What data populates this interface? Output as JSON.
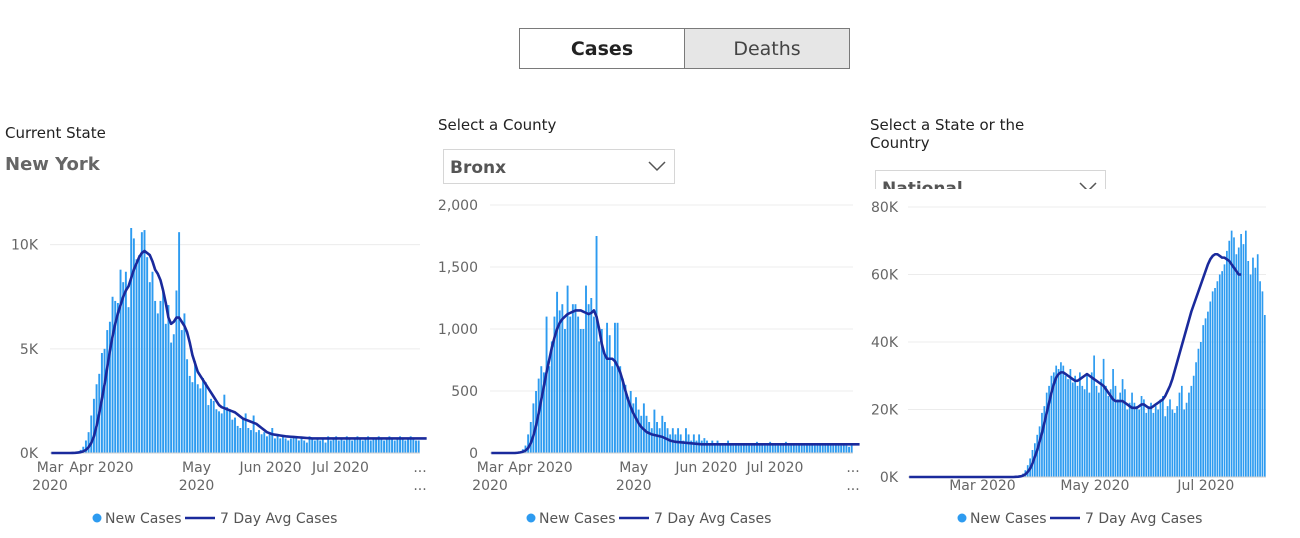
{
  "toggle": {
    "cases_label": "Cases",
    "deaths_label": "Deaths",
    "selected": "Cases"
  },
  "panels": {
    "state": {
      "title": "Current State",
      "value": "New York"
    },
    "county": {
      "title": "Select a County",
      "value": "Bronx"
    },
    "country": {
      "title_line1": "Select a State or the",
      "title_line2": "Country",
      "value": "National"
    }
  },
  "colors": {
    "bars": "#2d9bf0",
    "avg_line": "#1a2a9c",
    "grid": "#ececec",
    "axis_text": "#666666"
  },
  "chart_data": [
    {
      "type": "bar",
      "panel": "Current State",
      "x_ticks": [
        "Mar 2020",
        "Apr 2020",
        "May 2020",
        "Jun 2020",
        "Jul 2020",
        "..."
      ],
      "y_ticks": [
        "0K",
        "5K",
        "10K"
      ],
      "ylim": [
        0,
        12000
      ],
      "series": [
        {
          "name": "New Cases",
          "type": "bar",
          "values": [
            0,
            0,
            0,
            0,
            0,
            0,
            0,
            0,
            20,
            40,
            80,
            150,
            300,
            600,
            1000,
            1800,
            2600,
            3300,
            3800,
            4800,
            5000,
            5900,
            6300,
            7500,
            7300,
            7200,
            8800,
            8200,
            8700,
            7000,
            10800,
            10300,
            9300,
            9500,
            10600,
            10700,
            9400,
            8200,
            8700,
            7300,
            6700,
            7300,
            7800,
            6200,
            7100,
            5300,
            5700,
            7800,
            10600,
            5900,
            6700,
            4500,
            3700,
            3400,
            4400,
            3300,
            3100,
            3600,
            3400,
            2300,
            2600,
            2500,
            2100,
            2000,
            1900,
            2800,
            2200,
            2100,
            1600,
            1700,
            1300,
            1200,
            1600,
            1900,
            1200,
            1100,
            1800,
            1000,
            1100,
            900,
            1000,
            800,
            900,
            1200,
            700,
            900,
            700,
            800,
            700,
            600,
            700,
            800,
            700,
            600,
            700,
            600,
            500,
            800,
            700,
            600,
            700,
            600,
            700,
            500,
            800,
            600,
            700,
            800,
            600,
            700,
            600,
            800,
            700,
            600,
            700,
            800,
            700,
            600,
            700,
            800,
            600,
            700,
            700,
            800,
            700,
            600,
            700,
            800,
            700,
            600,
            700,
            800,
            700,
            600,
            700,
            800,
            700,
            600,
            600
          ]
        },
        {
          "name": "7 Day Avg Cases",
          "type": "line",
          "values": [
            0,
            0,
            0,
            0,
            0,
            0,
            0,
            0,
            5,
            10,
            20,
            40,
            80,
            150,
            280,
            480,
            800,
            1300,
            1900,
            2600,
            3300,
            4100,
            4900,
            5600,
            6200,
            6700,
            7100,
            7500,
            7800,
            8000,
            8400,
            8800,
            9100,
            9400,
            9600,
            9700,
            9600,
            9500,
            9200,
            8800,
            8600,
            8300,
            7800,
            7200,
            6500,
            6200,
            6300,
            6500,
            6500,
            6300,
            6100,
            5800,
            5300,
            4700,
            4300,
            3900,
            3700,
            3500,
            3300,
            3100,
            2900,
            2700,
            2500,
            2300,
            2200,
            2150,
            2100,
            2050,
            2000,
            1950,
            1850,
            1750,
            1650,
            1600,
            1550,
            1500,
            1450,
            1400,
            1300,
            1200,
            1100,
            1000,
            950,
            900,
            880,
            860,
            840,
            820,
            800,
            790,
            780,
            770,
            760,
            750,
            740,
            730,
            720,
            710,
            700,
            700,
            700,
            700,
            700,
            700,
            700,
            700,
            700,
            700,
            700,
            700,
            700,
            700,
            700,
            700,
            700,
            700,
            700,
            700,
            700,
            700,
            700,
            700,
            700,
            700,
            700,
            700,
            700,
            700,
            700,
            700,
            700,
            700,
            700,
            700,
            700,
            700,
            700,
            700,
            700,
            700,
            700,
            700
          ]
        }
      ]
    },
    {
      "type": "bar",
      "panel": "Select a County",
      "x_ticks": [
        "Mar 2020",
        "Apr 2020",
        "May 2020",
        "Jun 2020",
        "Jul 2020",
        "..."
      ],
      "y_ticks": [
        "0",
        "500",
        "1,000",
        "1,500",
        "2,000"
      ],
      "ylim": [
        0,
        2000
      ],
      "series": [
        {
          "name": "New Cases",
          "type": "bar",
          "values": [
            0,
            0,
            0,
            0,
            0,
            0,
            0,
            0,
            0,
            0,
            5,
            10,
            30,
            60,
            150,
            250,
            400,
            500,
            600,
            700,
            650,
            1100,
            700,
            900,
            1100,
            1300,
            1150,
            1200,
            1000,
            1350,
            1100,
            1200,
            1200,
            1100,
            1000,
            1000,
            1350,
            1200,
            1250,
            1100,
            1750,
            900,
            1000,
            800,
            1050,
            950,
            700,
            1050,
            1050,
            700,
            600,
            550,
            450,
            500,
            400,
            450,
            350,
            300,
            400,
            300,
            250,
            200,
            350,
            250,
            200,
            300,
            250,
            200,
            150,
            200,
            150,
            200,
            150,
            100,
            200,
            150,
            100,
            150,
            100,
            150,
            100,
            120,
            100,
            80,
            100,
            80,
            100,
            80,
            60,
            80,
            100,
            70,
            60,
            80,
            70,
            60,
            80,
            70,
            60,
            80,
            70,
            90,
            80,
            70,
            60,
            80,
            90,
            70,
            80,
            60,
            70,
            80,
            90,
            60,
            70,
            80,
            60,
            70,
            80,
            60,
            70,
            80,
            70,
            60,
            70,
            80,
            60,
            70,
            80,
            70,
            60,
            70,
            80,
            60,
            70,
            60,
            50,
            60
          ]
        },
        {
          "name": "7 Day Avg Cases",
          "type": "line",
          "values": [
            0,
            0,
            0,
            0,
            0,
            0,
            0,
            0,
            0,
            0,
            2,
            5,
            10,
            20,
            40,
            80,
            140,
            220,
            320,
            430,
            540,
            650,
            750,
            850,
            930,
            1000,
            1050,
            1080,
            1100,
            1120,
            1130,
            1140,
            1150,
            1150,
            1150,
            1140,
            1130,
            1120,
            1130,
            1150,
            1100,
            1000,
            880,
            800,
            760,
            760,
            760,
            740,
            700,
            650,
            580,
            500,
            430,
            370,
            320,
            280,
            240,
            210,
            190,
            170,
            160,
            150,
            145,
            140,
            135,
            130,
            120,
            110,
            100,
            95,
            90,
            88,
            86,
            84,
            82,
            80,
            78,
            76,
            74,
            72,
            70,
            70,
            70,
            70,
            70,
            70,
            70,
            70,
            70,
            70,
            70,
            70,
            70,
            70,
            70,
            70,
            70,
            70,
            70,
            70,
            70,
            70,
            70,
            70,
            70,
            70,
            70,
            70,
            70,
            70,
            70,
            70,
            70,
            70,
            70,
            70,
            70,
            70,
            70,
            70,
            70,
            70,
            70,
            70,
            70,
            70,
            70,
            70,
            70,
            70,
            70,
            70,
            70,
            70,
            70,
            70,
            70,
            70,
            70,
            70,
            70
          ]
        }
      ]
    },
    {
      "type": "bar",
      "panel": "National",
      "x_ticks": [
        "Mar 2020",
        "May 2020",
        "Jul 2020"
      ],
      "y_ticks": [
        "0K",
        "20K",
        "40K",
        "60K",
        "80K"
      ],
      "ylim": [
        0,
        80000
      ],
      "series": [
        {
          "name": "New Cases",
          "type": "bar",
          "values": [
            0,
            0,
            0,
            0,
            0,
            0,
            0,
            0,
            0,
            0,
            0,
            0,
            0,
            0,
            0,
            0,
            0,
            0,
            0,
            0,
            0,
            0,
            0,
            0,
            0,
            0,
            0,
            0,
            0,
            0,
            0,
            0,
            0,
            0,
            0,
            0,
            0,
            0,
            0,
            0,
            0,
            0,
            0,
            0,
            0,
            100,
            200,
            500,
            1000,
            2000,
            3500,
            5500,
            8000,
            10000,
            12500,
            15000,
            19000,
            21000,
            25000,
            27000,
            30000,
            31000,
            33000,
            32000,
            34000,
            33000,
            30000,
            29000,
            32000,
            28000,
            30000,
            27000,
            31000,
            27000,
            26000,
            30000,
            25000,
            31000,
            36000,
            27000,
            25000,
            29000,
            35000,
            27000,
            24000,
            26000,
            32000,
            27000,
            23000,
            25000,
            29000,
            26000,
            20000,
            22000,
            25000,
            22000,
            21000,
            20000,
            24000,
            23000,
            19000,
            21000,
            22000,
            19000,
            21000,
            20000,
            23000,
            24000,
            18000,
            21000,
            23000,
            20000,
            19000,
            21000,
            25000,
            27000,
            20000,
            22000,
            25000,
            27000,
            30000,
            34000,
            38000,
            40000,
            45000,
            47000,
            49000,
            52000,
            55000,
            56000,
            58000,
            60000,
            61000,
            63000,
            67000,
            70000,
            73000,
            71000,
            66000,
            68000,
            72000,
            69000,
            73000,
            64000,
            60000,
            65000,
            62000,
            66000,
            58000,
            55000,
            48000
          ]
        },
        {
          "name": "7 Day Avg Cases",
          "type": "line",
          "values": [
            0,
            0,
            0,
            0,
            0,
            0,
            0,
            0,
            0,
            0,
            0,
            0,
            0,
            0,
            0,
            0,
            0,
            0,
            0,
            0,
            0,
            0,
            0,
            0,
            0,
            0,
            0,
            0,
            0,
            0,
            0,
            0,
            0,
            0,
            0,
            0,
            0,
            0,
            0,
            0,
            0,
            0,
            0,
            0,
            0,
            50,
            100,
            200,
            400,
            800,
            1500,
            2500,
            4000,
            6000,
            8000,
            10500,
            13000,
            16000,
            19000,
            22000,
            25000,
            27500,
            29500,
            30500,
            31000,
            31000,
            30500,
            30000,
            29500,
            29000,
            28500,
            28500,
            29000,
            29500,
            30000,
            30500,
            30000,
            29500,
            29000,
            28500,
            28000,
            27500,
            27000,
            26000,
            25000,
            24000,
            23000,
            22500,
            22500,
            22500,
            22500,
            22000,
            21500,
            21000,
            20500,
            20500,
            20500,
            21000,
            21500,
            21500,
            21000,
            20500,
            20500,
            21000,
            21500,
            22000,
            22500,
            23000,
            24000,
            25500,
            27000,
            29000,
            31500,
            34000,
            36500,
            39000,
            41500,
            44000,
            46500,
            49000,
            51000,
            53000,
            55000,
            57000,
            59000,
            61000,
            63000,
            64500,
            65500,
            66000,
            66000,
            65500,
            65000,
            65000,
            64500,
            64000,
            63000,
            62000,
            61000,
            60000,
            60000
          ]
        }
      ]
    }
  ],
  "legend": {
    "bar_label": "New Cases",
    "line_label": "7 Day Avg Cases"
  }
}
